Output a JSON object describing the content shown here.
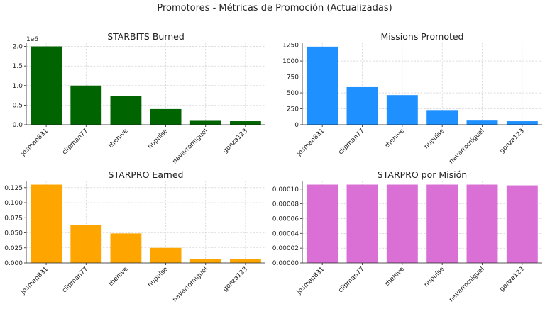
{
  "figure": {
    "title": "Promotores - Métricas de Promoción (Actualizadas)"
  },
  "chart_data": [
    {
      "type": "bar",
      "title": "STARBITS Burned",
      "categories": [
        "josman831",
        "clipman77",
        "thehive",
        "nupulse",
        "navarromiguel",
        "gonza123"
      ],
      "values": [
        2000000,
        1000000,
        730000,
        400000,
        100000,
        90000
      ],
      "color": "#006400",
      "ylim": [
        0,
        2100000
      ],
      "yticks": [
        0,
        500000,
        1000000,
        1500000,
        2000000
      ],
      "yticklabels": [
        "0.0",
        "0.5",
        "1.0",
        "1.5",
        "2.0"
      ],
      "offset_text": "1e6",
      "xlabel": "",
      "ylabel": "",
      "grid": true
    },
    {
      "type": "bar",
      "title": "Missions Promoted",
      "categories": [
        "josman831",
        "clipman77",
        "thehive",
        "nupulse",
        "navarromiguel",
        "gonza123"
      ],
      "values": [
        1225,
        590,
        465,
        230,
        65,
        55
      ],
      "color": "#1E90FF",
      "ylim": [
        0,
        1290
      ],
      "yticks": [
        0,
        250,
        500,
        750,
        1000,
        1250
      ],
      "yticklabels": [
        "0",
        "250",
        "500",
        "750",
        "1000",
        "1250"
      ],
      "xlabel": "",
      "ylabel": "",
      "grid": true
    },
    {
      "type": "bar",
      "title": "STARPRO Earned",
      "categories": [
        "josman831",
        "clipman77",
        "thehive",
        "nupulse",
        "navarromiguel",
        "gonza123"
      ],
      "values": [
        0.13,
        0.063,
        0.049,
        0.025,
        0.007,
        0.006
      ],
      "color": "#FFA500",
      "ylim": [
        0,
        0.1365
      ],
      "yticks": [
        0,
        0.025,
        0.05,
        0.075,
        0.1,
        0.125
      ],
      "yticklabels": [
        "0.000",
        "0.025",
        "0.050",
        "0.075",
        "0.100",
        "0.125"
      ],
      "xlabel": "",
      "ylabel": "",
      "grid": true
    },
    {
      "type": "bar",
      "title": "STARPRO por Misión",
      "categories": [
        "josman831",
        "clipman77",
        "thehive",
        "nupulse",
        "navarromiguel",
        "gonza123"
      ],
      "values": [
        0.000106,
        0.000106,
        0.000106,
        0.000106,
        0.000106,
        0.000105
      ],
      "color": "#DA70D6",
      "ylim": [
        0,
        0.0001113
      ],
      "yticks": [
        0,
        2e-05,
        4e-05,
        6e-05,
        8e-05,
        0.0001
      ],
      "yticklabels": [
        "0.00000",
        "0.00002",
        "0.00004",
        "0.00006",
        "0.00008",
        "0.00010"
      ],
      "xlabel": "",
      "ylabel": "",
      "grid": true
    }
  ]
}
